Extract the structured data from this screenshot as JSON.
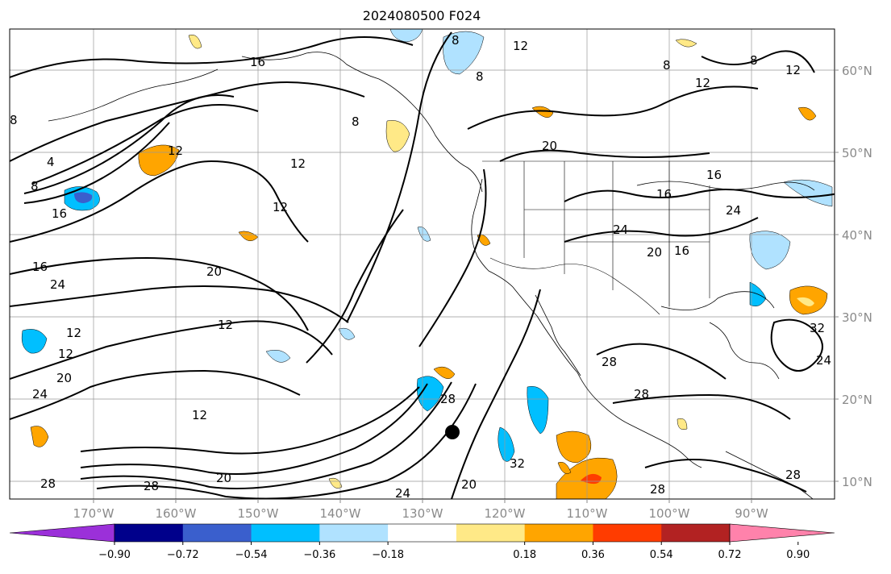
{
  "map": {
    "title": "2024080500 F024",
    "lat_labels": [
      "60°N",
      "50°N",
      "40°N",
      "30°N",
      "20°N",
      "10°N"
    ],
    "lon_labels": [
      "170°W",
      "160°W",
      "150°W",
      "140°W",
      "130°W",
      "120°W",
      "110°W",
      "100°W",
      "90°W"
    ],
    "contour_labels": [
      "8",
      "8",
      "12",
      "16",
      "12",
      "12",
      "8",
      "4",
      "8",
      "16",
      "12",
      "16",
      "20",
      "24",
      "12",
      "12",
      "20",
      "24",
      "28",
      "12",
      "12",
      "28",
      "20",
      "24",
      "20",
      "28",
      "16",
      "16",
      "24",
      "24",
      "20",
      "28",
      "28",
      "32",
      "28",
      "20",
      "28",
      "32",
      "24",
      "16",
      "12",
      "8",
      "8",
      "12",
      "8"
    ]
  },
  "colorbar": {
    "colors": [
      "#9b30d9",
      "#00008b",
      "#3a5fcd",
      "#00bfff",
      "#b0e2ff",
      "#ffffff",
      "#ffe987",
      "#ffa500",
      "#ff3c00",
      "#b22222",
      "#ff82ab"
    ],
    "tick_labels": [
      "−0.90",
      "−0.72",
      "−0.54",
      "−0.36",
      "−0.18",
      "0.18",
      "0.36",
      "0.54",
      "0.72",
      "0.90"
    ]
  }
}
